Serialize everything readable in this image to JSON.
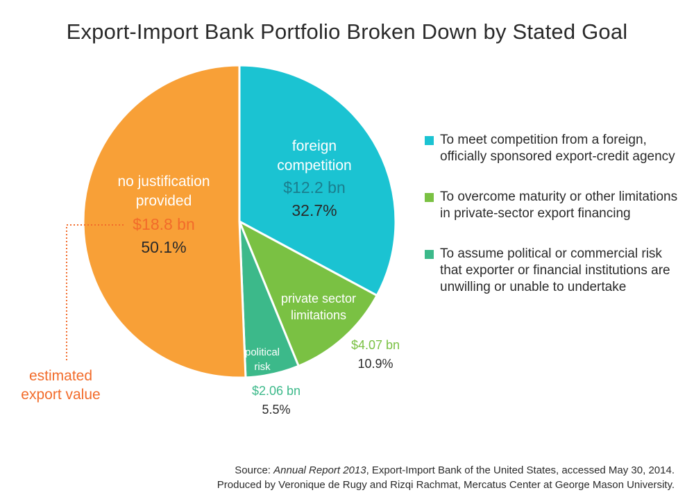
{
  "chart_data": {
    "type": "pie",
    "title": "Export-Import Bank Portfolio Broken Down by Stated Goal",
    "slices": [
      {
        "label": "foreign competition",
        "value": 12.2,
        "value_label": "$12.2 bn",
        "percent": 32.7,
        "percent_label": "32.7%",
        "color": "#1bc3d2",
        "value_color": "#1a7e8e"
      },
      {
        "label": "private sector limitations",
        "value": 4.07,
        "value_label": "$4.07 bn",
        "percent": 10.9,
        "percent_label": "10.9%",
        "color": "#7ac143",
        "value_color": "#7ac143"
      },
      {
        "label": "political risk",
        "value": 2.06,
        "value_label": "$2.06 bn",
        "percent": 5.5,
        "percent_label": "5.5%",
        "color": "#3cb98a",
        "value_color": "#3cb98a"
      },
      {
        "label": "no justification provided",
        "value": 18.8,
        "value_label": "$18.8 bn",
        "percent": 50.1,
        "percent_label": "50.1%",
        "color": "#f8a037",
        "value_color": "#f26b2a"
      }
    ],
    "legend": [
      {
        "text": "To meet competition from a foreign, officially sponsored export-credit agency",
        "color": "#1bc3d2"
      },
      {
        "text": "To overcome maturity or other limitations in private-sector export financing",
        "color": "#7ac143"
      },
      {
        "text": "To assume political or commercial risk that exporter or financial institutions are unwilling or unable to undertake",
        "color": "#3cb98a"
      }
    ],
    "legend_position": "right",
    "annotation": "estimated export value"
  },
  "source": {
    "prefix": "Source: ",
    "report": "Annual Report 2013",
    "rest": ", Export-Import Bank of the United States, accessed May 30, 2014.",
    "line2": "Produced by Veronique de Rugy and Rizqi Rachmat, Mercatus Center at George Mason University."
  }
}
